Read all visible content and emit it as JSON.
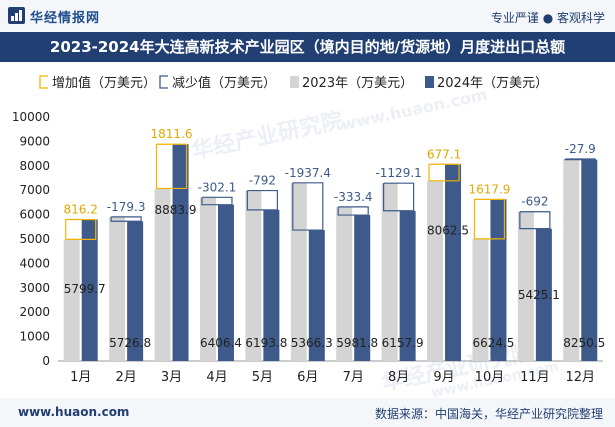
{
  "header": {
    "brand": "华经情报网",
    "tagline": "专业严谨 ● 客观科学"
  },
  "title": "2023-2024年大连高新技术产业园区（境内目的地/货源地）月度进出口总额",
  "footer": {
    "url": "www.huaon.com",
    "source": "数据来源：中国海关，华经产业研究院整理"
  },
  "watermarks": [
    "华经产业研究院",
    "www.huaon.com",
    "华经产业研究院",
    "www.huaon.com"
  ],
  "colors": {
    "bar2023": "#d4d4d4",
    "bar2024": "#3d5a8a",
    "increase": "#f0b400",
    "decrease": "#3d5a8a",
    "header_bg": "#213f73"
  },
  "chart_data": {
    "type": "bar",
    "categories": [
      "1月",
      "2月",
      "3月",
      "4月",
      "5月",
      "6月",
      "7月",
      "8月",
      "9月",
      "10月",
      "11月",
      "12月"
    ],
    "series": [
      {
        "name": "2023年（万美元）",
        "values": [
          4983.5,
          5906.1,
          7072.3,
          6708.5,
          6985.8,
          7303.7,
          6315.2,
          7287.0,
          7385.4,
          5006.6,
          6117.1,
          8278.4
        ]
      },
      {
        "name": "2024年（万美元）",
        "values": [
          5799.7,
          5726.8,
          8883.9,
          6406.4,
          6193.8,
          5366.3,
          5981.8,
          6157.9,
          8062.5,
          6624.5,
          5425.1,
          8250.5
        ]
      }
    ],
    "changes": [
      816.2,
      -179.3,
      1811.6,
      -302.1,
      -792,
      -1937.4,
      -333.4,
      -1129.1,
      677.1,
      1617.9,
      -692,
      -27.9
    ],
    "legend": [
      "增加值（万美元）",
      "减少值（万美元）",
      "2023年（万美元）",
      "2024年（万美元）"
    ],
    "legend_position": "top-left",
    "ylim": [
      0,
      10000
    ],
    "yticks": [
      0,
      1000,
      2000,
      3000,
      4000,
      5000,
      6000,
      7000,
      8000,
      9000,
      10000
    ],
    "grid": false
  }
}
